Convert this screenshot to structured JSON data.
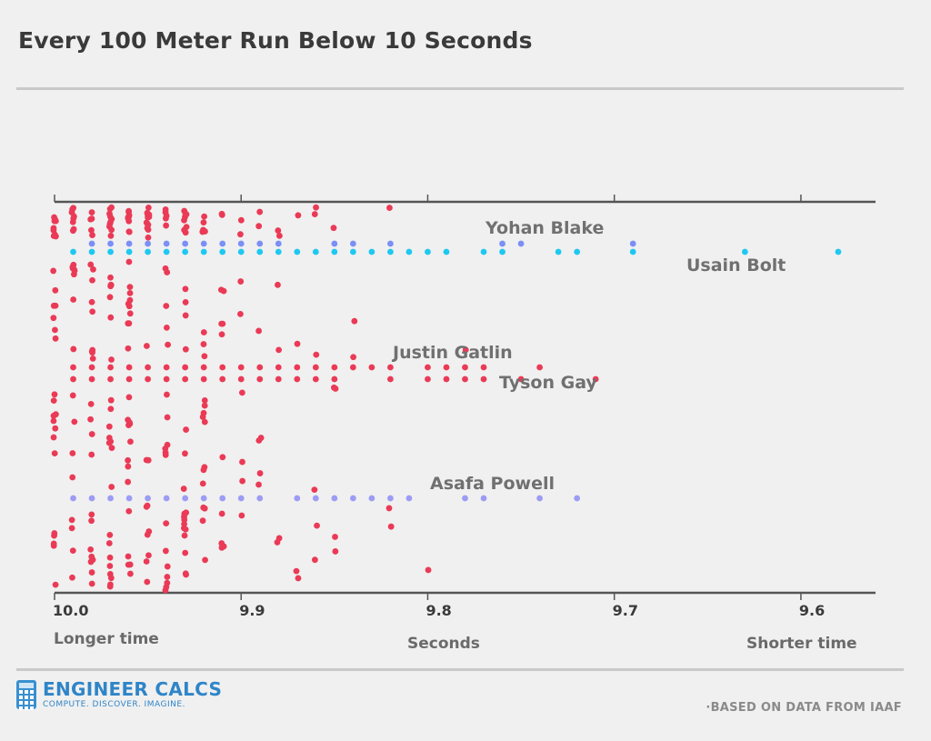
{
  "title": "Every 100 Meter Run Below 10 Seconds",
  "footer": {
    "brand_name": "ENGINEER CALCS",
    "brand_tagline": "COMPUTE. DISCOVER. IMAGINE.",
    "source": "·BASED ON DATA FROM IAAF"
  },
  "colors": {
    "others": "#ea3a56",
    "usain_bolt": "#1ec8f0",
    "yohan_blake": "#7b8ff5",
    "asafa_powell": "#9c9cf5",
    "axis": "#555555",
    "text": "#3a3a3a",
    "label": "#707070"
  },
  "chart_data": {
    "type": "scatter",
    "title": "Every 100 Meter Run Below 10 Seconds",
    "xlabel": "Seconds",
    "xlabel_left": "Longer time",
    "xlabel_right": "Shorter time",
    "x_reversed": true,
    "xlim": [
      10.0,
      9.56
    ],
    "x_ticks": [
      10.0,
      9.9,
      9.8,
      9.7,
      9.6
    ],
    "x_tick_labels": [
      "10.0",
      "9.9",
      "9.8",
      "9.7",
      "9.6"
    ],
    "grid": false,
    "legend": "none",
    "annotations": [
      {
        "text": "Yohan Blake",
        "series": "yohan_blake"
      },
      {
        "text": "Usain Bolt",
        "series": "usain_bolt"
      },
      {
        "text": "Justin Gatlin",
        "series": "justin_gatlin"
      },
      {
        "text": "Tyson Gay",
        "series": "tyson_gay"
      },
      {
        "text": "Asafa Powell",
        "series": "asafa_powell"
      }
    ],
    "series": [
      {
        "key": "yohan_blake",
        "color": "#7b8ff5",
        "x": [
          9.98,
          9.97,
          9.96,
          9.95,
          9.94,
          9.93,
          9.92,
          9.91,
          9.9,
          9.89,
          9.88,
          9.85,
          9.84,
          9.82,
          9.76,
          9.75,
          9.69
        ]
      },
      {
        "key": "usain_bolt",
        "color": "#1ec8f0",
        "x": [
          9.99,
          9.98,
          9.97,
          9.96,
          9.95,
          9.94,
          9.93,
          9.92,
          9.91,
          9.9,
          9.89,
          9.88,
          9.87,
          9.86,
          9.85,
          9.84,
          9.83,
          9.82,
          9.81,
          9.8,
          9.79,
          9.77,
          9.76,
          9.73,
          9.72,
          9.69,
          9.63,
          9.58
        ]
      },
      {
        "key": "justin_gatlin",
        "color": "#ea3a56",
        "x": [
          9.99,
          9.98,
          9.97,
          9.96,
          9.95,
          9.94,
          9.93,
          9.92,
          9.91,
          9.9,
          9.89,
          9.88,
          9.87,
          9.86,
          9.85,
          9.84,
          9.83,
          9.82,
          9.8,
          9.79,
          9.78,
          9.77,
          9.74
        ]
      },
      {
        "key": "tyson_gay",
        "color": "#ea3a56",
        "x": [
          9.99,
          9.98,
          9.97,
          9.96,
          9.95,
          9.94,
          9.93,
          9.92,
          9.91,
          9.9,
          9.89,
          9.88,
          9.87,
          9.86,
          9.85,
          9.82,
          9.8,
          9.79,
          9.78,
          9.77,
          9.75,
          9.71
        ]
      },
      {
        "key": "asafa_powell",
        "color": "#9c9cf5",
        "x": [
          9.99,
          9.98,
          9.97,
          9.96,
          9.95,
          9.94,
          9.93,
          9.92,
          9.91,
          9.9,
          9.89,
          9.87,
          9.86,
          9.85,
          9.84,
          9.83,
          9.82,
          9.81,
          9.78,
          9.77,
          9.74,
          9.72
        ]
      },
      {
        "key": "others",
        "color": "#ea3a56",
        "x": [
          10.0,
          10.0,
          10.0,
          10.0,
          10.0,
          10.0,
          10.0,
          10.0,
          10.0,
          10.0,
          10.0,
          10.0,
          10.0,
          10.0,
          10.0,
          10.0,
          10.0,
          10.0,
          10.0,
          10.0,
          10.0,
          10.0,
          10.0,
          10.0,
          10.0,
          10.0,
          10.0,
          10.0,
          10.0,
          10.0,
          9.99,
          9.99,
          9.99,
          9.99,
          9.99,
          9.99,
          9.99,
          9.99,
          9.99,
          9.99,
          9.99,
          9.99,
          9.99,
          9.99,
          9.99,
          9.99,
          9.99,
          9.99,
          9.99,
          9.99,
          9.99,
          9.99,
          9.99,
          9.99,
          9.98,
          9.98,
          9.98,
          9.98,
          9.98,
          9.98,
          9.98,
          9.98,
          9.98,
          9.98,
          9.98,
          9.98,
          9.98,
          9.98,
          9.98,
          9.98,
          9.98,
          9.98,
          9.98,
          9.98,
          9.98,
          9.98,
          9.98,
          9.98,
          9.98,
          9.98,
          9.97,
          9.97,
          9.97,
          9.97,
          9.97,
          9.97,
          9.97,
          9.97,
          9.97,
          9.97,
          9.97,
          9.97,
          9.97,
          9.97,
          9.97,
          9.97,
          9.97,
          9.97,
          9.97,
          9.97,
          9.97,
          9.97,
          9.97,
          9.97,
          9.97,
          9.97,
          9.97,
          9.97,
          9.97,
          9.97,
          9.97,
          9.97,
          9.97,
          9.97,
          9.96,
          9.96,
          9.96,
          9.96,
          9.96,
          9.96,
          9.96,
          9.96,
          9.96,
          9.96,
          9.96,
          9.96,
          9.96,
          9.96,
          9.96,
          9.96,
          9.96,
          9.96,
          9.96,
          9.96,
          9.96,
          9.96,
          9.96,
          9.96,
          9.96,
          9.96,
          9.96,
          9.96,
          9.96,
          9.96,
          9.96,
          9.96,
          9.96,
          9.95,
          9.95,
          9.95,
          9.95,
          9.95,
          9.95,
          9.95,
          9.95,
          9.95,
          9.95,
          9.95,
          9.95,
          9.95,
          9.95,
          9.95,
          9.95,
          9.95,
          9.95,
          9.95,
          9.95,
          9.95,
          9.95,
          9.94,
          9.94,
          9.94,
          9.94,
          9.94,
          9.94,
          9.94,
          9.94,
          9.94,
          9.94,
          9.94,
          9.94,
          9.94,
          9.94,
          9.94,
          9.94,
          9.94,
          9.94,
          9.94,
          9.94,
          9.94,
          9.94,
          9.94,
          9.93,
          9.93,
          9.93,
          9.93,
          9.93,
          9.93,
          9.93,
          9.93,
          9.93,
          9.93,
          9.93,
          9.93,
          9.93,
          9.93,
          9.93,
          9.93,
          9.93,
          9.93,
          9.93,
          9.93,
          9.93,
          9.93,
          9.93,
          9.93,
          9.93,
          9.93,
          9.92,
          9.92,
          9.92,
          9.92,
          9.92,
          9.92,
          9.92,
          9.92,
          9.92,
          9.92,
          9.92,
          9.92,
          9.92,
          9.92,
          9.92,
          9.92,
          9.92,
          9.92,
          9.92,
          9.92,
          9.91,
          9.91,
          9.91,
          9.91,
          9.91,
          9.91,
          9.91,
          9.91,
          9.91,
          9.91,
          9.91,
          9.91,
          9.9,
          9.9,
          9.9,
          9.9,
          9.9,
          9.9,
          9.9,
          9.9,
          9.89,
          9.89,
          9.89,
          9.89,
          9.89,
          9.89,
          9.89,
          9.88,
          9.88,
          9.88,
          9.88,
          9.88,
          9.88,
          9.87,
          9.87,
          9.87,
          9.87,
          9.86,
          9.86,
          9.86,
          9.86,
          9.86,
          9.86,
          9.85,
          9.85,
          9.85,
          9.85,
          9.85,
          9.84,
          9.84,
          9.82,
          9.82,
          9.82,
          9.8,
          9.78
        ]
      }
    ]
  }
}
